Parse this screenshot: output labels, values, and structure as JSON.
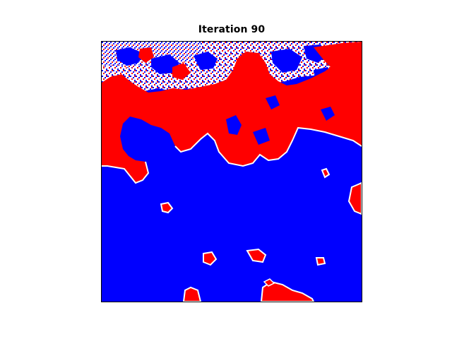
{
  "figure": {
    "title": "Iteration 90"
  },
  "image": {
    "description_colors": {
      "background_state": "#0000ff",
      "second_state": "#ff0000",
      "mixed_state": "#ffffff"
    }
  }
}
